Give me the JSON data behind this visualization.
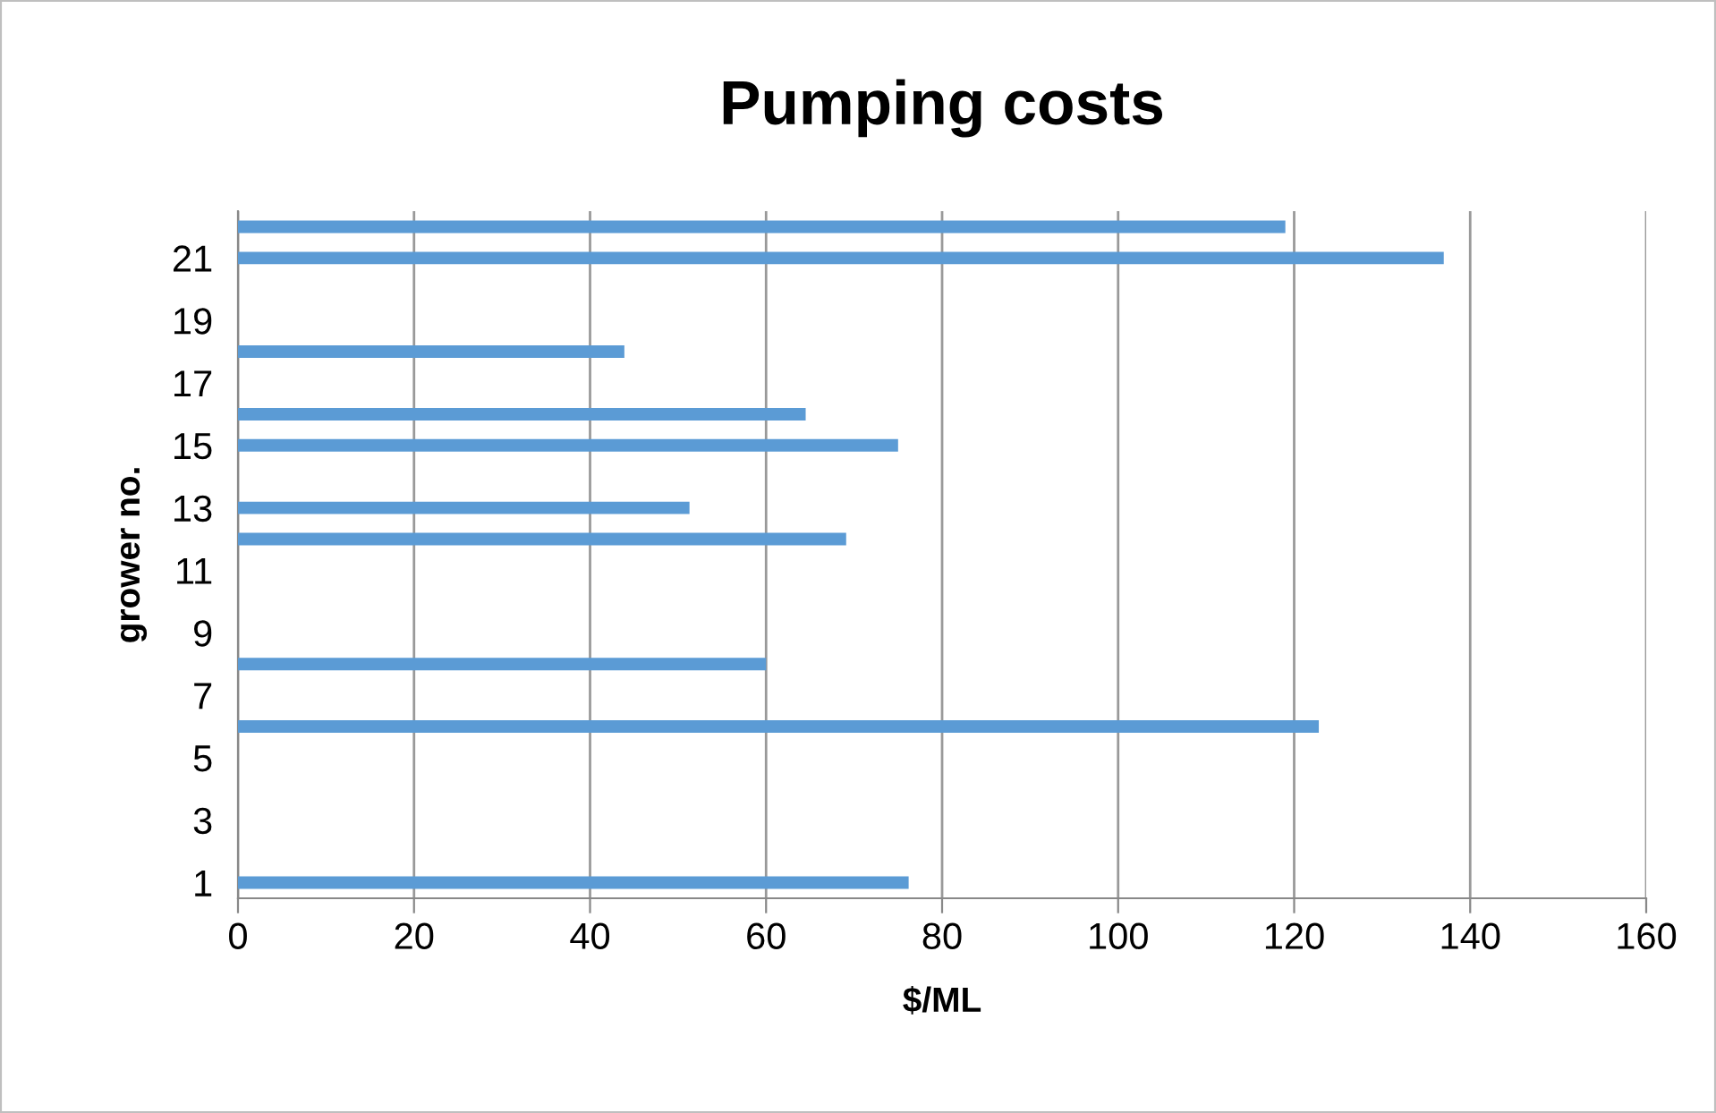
{
  "chart_data": {
    "type": "bar",
    "orientation": "horizontal",
    "title": "Pumping costs",
    "xlabel": "$/ML",
    "ylabel": "grower no.",
    "categories": [
      null,
      "21",
      null,
      "19",
      null,
      "17",
      null,
      "15",
      null,
      "13",
      null,
      "11",
      null,
      "9",
      null,
      "7",
      null,
      "5",
      null,
      "3",
      null,
      "1"
    ],
    "values": [
      119,
      137,
      null,
      null,
      43.9,
      null,
      64.5,
      75,
      null,
      51.3,
      69.1,
      null,
      null,
      null,
      60,
      null,
      122.8,
      null,
      null,
      null,
      null,
      76.2
    ],
    "color": "#5b9bd5",
    "xlim": [
      0,
      160
    ],
    "xticks": [
      0,
      20,
      40,
      60,
      80,
      100,
      120,
      140,
      160
    ],
    "grid": "x",
    "legend": false
  }
}
